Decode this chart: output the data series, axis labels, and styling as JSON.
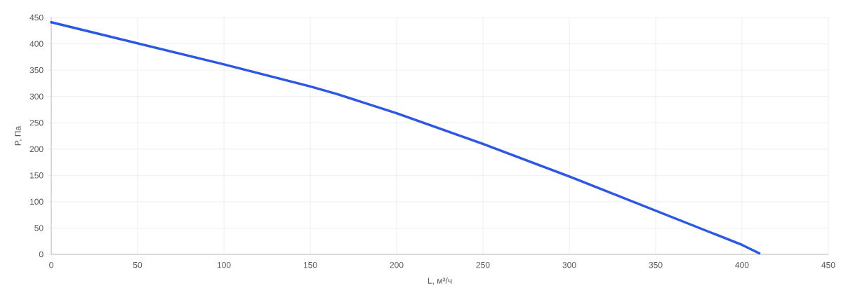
{
  "chart_data": {
    "type": "line",
    "xlabel": "L, м³/ч",
    "ylabel": "P, Па",
    "x": [
      0,
      50,
      100,
      150,
      165,
      200,
      250,
      300,
      350,
      400,
      405,
      410
    ],
    "series": [
      {
        "color": "#2b57e6",
        "values": [
          441,
          401,
          361,
          319,
          305,
          268,
          210,
          148,
          83,
          18,
          10,
          2
        ]
      }
    ],
    "xlim": [
      0,
      450
    ],
    "ylim": [
      0,
      450
    ],
    "xticks": [
      0,
      50,
      100,
      150,
      200,
      250,
      300,
      350,
      400,
      450
    ],
    "yticks": [
      0,
      50,
      100,
      150,
      200,
      250,
      300,
      350,
      400,
      450
    ],
    "grid": true,
    "marker": "none",
    "line_style": "solid"
  }
}
